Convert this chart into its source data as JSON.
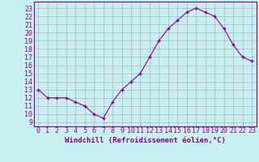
{
  "x": [
    0,
    1,
    2,
    3,
    4,
    5,
    6,
    7,
    8,
    9,
    10,
    11,
    12,
    13,
    14,
    15,
    16,
    17,
    18,
    19,
    20,
    21,
    22,
    23
  ],
  "y": [
    13,
    12,
    12,
    12,
    11.5,
    11,
    10,
    9.5,
    11.5,
    13,
    14,
    15,
    17,
    19,
    20.5,
    21.5,
    22.5,
    23,
    22.5,
    22,
    20.5,
    18.5,
    17,
    16.5
  ],
  "line_color": "#8B008B",
  "marker": "+",
  "bg_color": "#c8f0f0",
  "grid_color": "#9070a0",
  "xlabel": "Windchill (Refroidissement éolien,°C)",
  "xlabel_fontsize": 6.5,
  "ylabel_ticks": [
    9,
    10,
    11,
    12,
    13,
    14,
    15,
    16,
    17,
    18,
    19,
    20,
    21,
    22,
    23
  ],
  "ylim": [
    8.5,
    23.8
  ],
  "xlim": [
    -0.5,
    23.5
  ],
  "tick_fontsize": 6.0
}
